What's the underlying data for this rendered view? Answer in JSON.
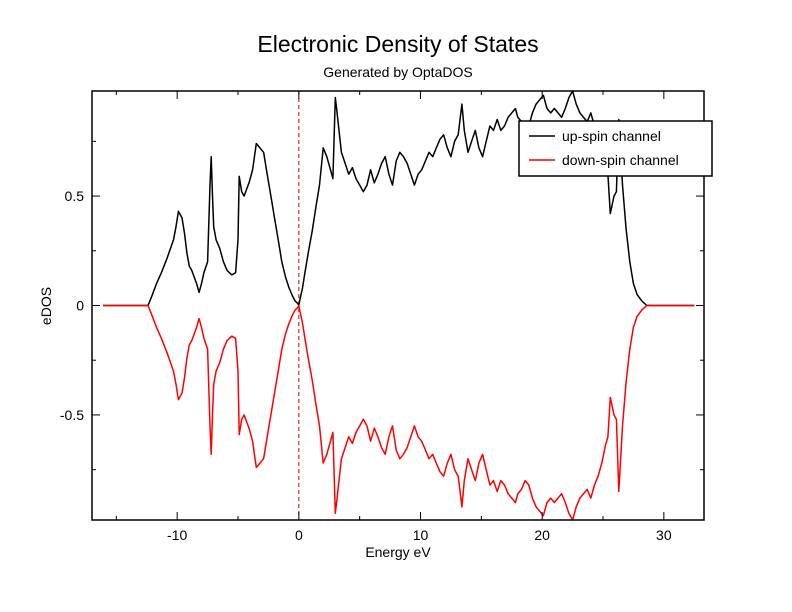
{
  "chart_data": {
    "type": "line",
    "title": "Electronic Density of States",
    "subtitle": "Generated by OptaDOS",
    "xlabel": "Energy eV",
    "ylabel": "eDOS",
    "xlim": [
      -17,
      33.3
    ],
    "ylim": [
      -0.98,
      0.98
    ],
    "x_ticks": [
      -10,
      0,
      10,
      20,
      30
    ],
    "x_tick_labels": [
      "-10",
      "0",
      "10",
      "20",
      "30"
    ],
    "y_ticks": [
      -0.5,
      0,
      0.5
    ],
    "y_tick_labels": [
      "-0.5",
      "0",
      "0.5"
    ],
    "fermi_level": 0,
    "legend": "top-right",
    "grid": false,
    "series": [
      {
        "name": "up-spin channel",
        "color": "#000000",
        "x": [
          -16.1,
          -12.4,
          -12.1,
          -11.7,
          -11.3,
          -10.8,
          -10.3,
          -10.1,
          -9.9,
          -9.6,
          -9.4,
          -9.2,
          -9.0,
          -8.8,
          -8.4,
          -8.2,
          -8.0,
          -7.8,
          -7.5,
          -7.3,
          -7.2,
          -7.1,
          -7.0,
          -6.8,
          -6.5,
          -6.2,
          -5.9,
          -5.5,
          -5.2,
          -5.0,
          -4.9,
          -4.7,
          -4.5,
          -4.3,
          -4.1,
          -3.8,
          -3.5,
          -3.2,
          -2.9,
          -2.6,
          -2.3,
          -2.0,
          -1.7,
          -1.4,
          -1.1,
          -0.8,
          -0.5,
          -0.3,
          -0.1,
          0.0,
          0.1,
          0.3,
          0.5,
          0.8,
          1.1,
          1.4,
          1.7,
          2.0,
          2.3,
          2.6,
          2.8,
          3.0,
          3.1,
          3.3,
          3.5,
          3.8,
          4.1,
          4.4,
          4.7,
          5.0,
          5.3,
          5.6,
          5.9,
          6.2,
          6.5,
          6.8,
          7.1,
          7.4,
          7.7,
          8.0,
          8.3,
          8.6,
          8.9,
          9.2,
          9.5,
          9.8,
          10.1,
          10.4,
          10.7,
          11.0,
          11.3,
          11.6,
          11.9,
          12.2,
          12.5,
          12.8,
          13.1,
          13.4,
          13.6,
          13.9,
          14.2,
          14.5,
          14.8,
          15.1,
          15.4,
          15.7,
          16.0,
          16.3,
          16.6,
          16.9,
          17.2,
          17.5,
          17.8,
          18.0,
          18.3,
          18.6,
          18.9,
          19.2,
          19.5,
          19.8,
          20.1,
          20.4,
          20.7,
          21.0,
          21.3,
          21.6,
          21.9,
          22.2,
          22.5,
          22.8,
          23.1,
          23.4,
          23.7,
          24.0,
          24.3,
          24.6,
          24.9,
          25.2,
          25.4,
          25.6,
          25.9,
          26.1,
          26.3,
          26.6,
          26.9,
          27.2,
          27.5,
          27.8,
          28.2,
          28.6,
          29.0,
          32.5
        ],
        "y": [
          0.0,
          0.0,
          0.04,
          0.1,
          0.15,
          0.22,
          0.3,
          0.36,
          0.43,
          0.4,
          0.33,
          0.24,
          0.18,
          0.16,
          0.1,
          0.06,
          0.1,
          0.15,
          0.2,
          0.55,
          0.68,
          0.5,
          0.36,
          0.3,
          0.26,
          0.2,
          0.16,
          0.14,
          0.15,
          0.3,
          0.59,
          0.52,
          0.5,
          0.53,
          0.56,
          0.62,
          0.74,
          0.72,
          0.7,
          0.6,
          0.5,
          0.4,
          0.3,
          0.2,
          0.13,
          0.08,
          0.04,
          0.02,
          0.01,
          0.0,
          0.03,
          0.08,
          0.15,
          0.25,
          0.34,
          0.45,
          0.55,
          0.72,
          0.68,
          0.62,
          0.58,
          0.95,
          0.9,
          0.8,
          0.7,
          0.65,
          0.6,
          0.63,
          0.58,
          0.55,
          0.52,
          0.55,
          0.62,
          0.56,
          0.6,
          0.65,
          0.68,
          0.6,
          0.55,
          0.66,
          0.7,
          0.68,
          0.65,
          0.6,
          0.55,
          0.6,
          0.62,
          0.66,
          0.7,
          0.68,
          0.72,
          0.76,
          0.78,
          0.72,
          0.68,
          0.75,
          0.78,
          0.92,
          0.8,
          0.7,
          0.75,
          0.8,
          0.72,
          0.68,
          0.75,
          0.82,
          0.8,
          0.85,
          0.8,
          0.82,
          0.86,
          0.88,
          0.9,
          0.86,
          0.84,
          0.8,
          0.82,
          0.88,
          0.92,
          0.94,
          0.96,
          0.9,
          0.88,
          0.9,
          0.88,
          0.86,
          0.9,
          0.95,
          0.98,
          0.92,
          0.88,
          0.86,
          0.84,
          0.88,
          0.82,
          0.78,
          0.72,
          0.64,
          0.6,
          0.42,
          0.5,
          0.52,
          0.85,
          0.55,
          0.35,
          0.2,
          0.1,
          0.05,
          0.02,
          0.0,
          0.0,
          0.0
        ]
      },
      {
        "name": "down-spin channel",
        "color": "#ff0000",
        "x": [
          -16.1,
          -12.4,
          -12.1,
          -11.7,
          -11.3,
          -10.8,
          -10.3,
          -10.1,
          -9.9,
          -9.6,
          -9.4,
          -9.2,
          -9.0,
          -8.8,
          -8.4,
          -8.2,
          -8.0,
          -7.8,
          -7.5,
          -7.3,
          -7.2,
          -7.1,
          -7.0,
          -6.8,
          -6.5,
          -6.2,
          -5.9,
          -5.5,
          -5.2,
          -5.0,
          -4.9,
          -4.7,
          -4.5,
          -4.3,
          -4.1,
          -3.8,
          -3.5,
          -3.2,
          -2.9,
          -2.6,
          -2.3,
          -2.0,
          -1.7,
          -1.4,
          -1.1,
          -0.8,
          -0.5,
          -0.3,
          -0.1,
          0.0,
          0.1,
          0.3,
          0.5,
          0.8,
          1.1,
          1.4,
          1.7,
          2.0,
          2.3,
          2.6,
          2.8,
          3.0,
          3.1,
          3.3,
          3.5,
          3.8,
          4.1,
          4.4,
          4.7,
          5.0,
          5.3,
          5.6,
          5.9,
          6.2,
          6.5,
          6.8,
          7.1,
          7.4,
          7.7,
          8.0,
          8.3,
          8.6,
          8.9,
          9.2,
          9.5,
          9.8,
          10.1,
          10.4,
          10.7,
          11.0,
          11.3,
          11.6,
          11.9,
          12.2,
          12.5,
          12.8,
          13.1,
          13.4,
          13.6,
          13.9,
          14.2,
          14.5,
          14.8,
          15.1,
          15.4,
          15.7,
          16.0,
          16.3,
          16.6,
          16.9,
          17.2,
          17.5,
          17.8,
          18.0,
          18.3,
          18.6,
          18.9,
          19.2,
          19.5,
          19.8,
          20.1,
          20.4,
          20.7,
          21.0,
          21.3,
          21.6,
          21.9,
          22.2,
          22.5,
          22.8,
          23.1,
          23.4,
          23.7,
          24.0,
          24.3,
          24.6,
          24.9,
          25.2,
          25.4,
          25.6,
          25.9,
          26.1,
          26.3,
          26.6,
          26.9,
          27.2,
          27.5,
          27.8,
          28.2,
          28.6,
          29.0,
          32.5
        ],
        "y": [
          0.0,
          0.0,
          -0.04,
          -0.1,
          -0.15,
          -0.22,
          -0.3,
          -0.36,
          -0.43,
          -0.4,
          -0.33,
          -0.24,
          -0.18,
          -0.16,
          -0.1,
          -0.06,
          -0.1,
          -0.15,
          -0.2,
          -0.55,
          -0.68,
          -0.5,
          -0.36,
          -0.3,
          -0.26,
          -0.2,
          -0.16,
          -0.14,
          -0.15,
          -0.3,
          -0.59,
          -0.52,
          -0.5,
          -0.53,
          -0.56,
          -0.62,
          -0.74,
          -0.72,
          -0.7,
          -0.6,
          -0.5,
          -0.4,
          -0.3,
          -0.2,
          -0.13,
          -0.08,
          -0.04,
          -0.02,
          -0.01,
          0.0,
          -0.03,
          -0.08,
          -0.15,
          -0.25,
          -0.34,
          -0.45,
          -0.55,
          -0.72,
          -0.68,
          -0.62,
          -0.58,
          -0.95,
          -0.9,
          -0.8,
          -0.7,
          -0.65,
          -0.6,
          -0.63,
          -0.58,
          -0.55,
          -0.52,
          -0.55,
          -0.62,
          -0.56,
          -0.6,
          -0.65,
          -0.68,
          -0.6,
          -0.55,
          -0.66,
          -0.7,
          -0.68,
          -0.65,
          -0.6,
          -0.55,
          -0.6,
          -0.62,
          -0.66,
          -0.7,
          -0.68,
          -0.72,
          -0.76,
          -0.78,
          -0.72,
          -0.68,
          -0.75,
          -0.78,
          -0.92,
          -0.8,
          -0.7,
          -0.75,
          -0.8,
          -0.72,
          -0.68,
          -0.75,
          -0.82,
          -0.8,
          -0.85,
          -0.8,
          -0.82,
          -0.86,
          -0.88,
          -0.9,
          -0.86,
          -0.84,
          -0.8,
          -0.82,
          -0.88,
          -0.92,
          -0.94,
          -0.96,
          -0.9,
          -0.88,
          -0.9,
          -0.88,
          -0.86,
          -0.9,
          -0.95,
          -0.98,
          -0.92,
          -0.88,
          -0.86,
          -0.84,
          -0.88,
          -0.82,
          -0.78,
          -0.72,
          -0.64,
          -0.6,
          -0.42,
          -0.5,
          -0.52,
          -0.85,
          -0.55,
          -0.35,
          -0.2,
          -0.1,
          -0.05,
          -0.02,
          0.0,
          0.0,
          0.0
        ]
      }
    ]
  }
}
